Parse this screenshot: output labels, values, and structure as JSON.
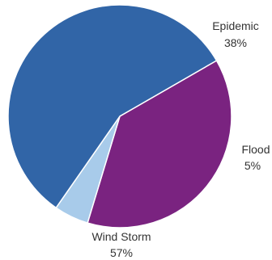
{
  "chart_data": {
    "type": "pie",
    "title": "",
    "slices": [
      {
        "label": "Epidemic",
        "value": 38,
        "value_text": "38%",
        "color": "#7a2380"
      },
      {
        "label": "Flood",
        "value": 5,
        "value_text": "5%",
        "color": "#a8cbea"
      },
      {
        "label": "Wind Storm",
        "value": 57,
        "value_text": "57%",
        "color": "#3165a7"
      }
    ],
    "start_angle_deg": -30,
    "direction": "clockwise",
    "legend": "none",
    "labels_outside": true
  }
}
